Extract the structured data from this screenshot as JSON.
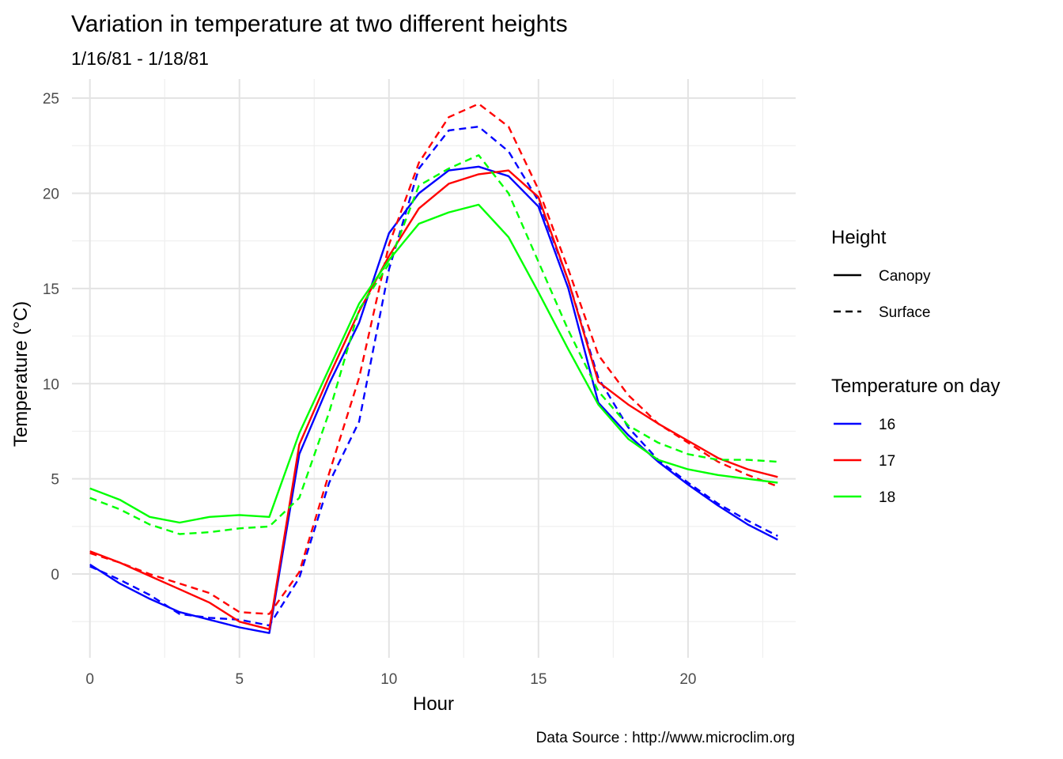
{
  "chart_data": {
    "type": "line",
    "title": "Variation in temperature at two different heights",
    "subtitle": "1/16/81 - 1/18/81",
    "xlabel": "Hour",
    "ylabel": "Temperature (°C)",
    "caption": "Data Source : http://www.microclim.org",
    "xlim": [
      -0.6,
      23.6
    ],
    "ylim": [
      -4.4,
      26.0
    ],
    "xticks": [
      0,
      5,
      10,
      15,
      20
    ],
    "yticks": [
      0,
      5,
      10,
      15,
      20,
      25
    ],
    "grid": true,
    "legend_position": "right",
    "legends": [
      {
        "title": "Height",
        "items": [
          {
            "label": "Canopy",
            "dash": "solid"
          },
          {
            "label": "Surface",
            "dash": "dashed"
          }
        ]
      },
      {
        "title": "Temperature on day",
        "items": [
          {
            "label": "16",
            "color": "#0000ff"
          },
          {
            "label": "17",
            "color": "#ff0000"
          },
          {
            "label": "18",
            "color": "#00ff00"
          }
        ]
      }
    ],
    "x": [
      0,
      1,
      2,
      3,
      4,
      5,
      6,
      7,
      8,
      9,
      10,
      11,
      12,
      13,
      14,
      15,
      16,
      17,
      18,
      19,
      20,
      21,
      22,
      23
    ],
    "series": [
      {
        "day": "16",
        "height": "Canopy",
        "color": "#0000ff",
        "dash": "solid",
        "values": [
          0.5,
          -0.5,
          -1.3,
          -2.0,
          -2.4,
          -2.8,
          -3.1,
          6.3,
          10.0,
          13.2,
          17.9,
          20.0,
          21.2,
          21.4,
          20.9,
          19.3,
          15.0,
          9.0,
          7.3,
          5.9,
          4.7,
          3.6,
          2.6,
          1.8
        ]
      },
      {
        "day": "16",
        "height": "Surface",
        "color": "#0000ff",
        "dash": "dashed",
        "values": [
          0.4,
          -0.3,
          -1.1,
          -2.1,
          -2.3,
          -2.4,
          -2.7,
          -0.2,
          4.8,
          8.0,
          16.0,
          21.3,
          23.3,
          23.5,
          22.2,
          19.6,
          15.4,
          10.3,
          7.7,
          6.0,
          4.8,
          3.7,
          2.8,
          2.0
        ]
      },
      {
        "day": "17",
        "height": "Canopy",
        "color": "#ff0000",
        "dash": "solid",
        "values": [
          1.2,
          0.6,
          -0.1,
          -0.8,
          -1.5,
          -2.5,
          -2.9,
          6.8,
          10.4,
          13.8,
          16.7,
          19.2,
          20.5,
          21.0,
          21.2,
          19.8,
          15.4,
          10.1,
          8.9,
          7.9,
          7.0,
          6.1,
          5.5,
          5.1
        ]
      },
      {
        "day": "17",
        "height": "Surface",
        "color": "#ff0000",
        "dash": "dashed",
        "values": [
          1.1,
          0.6,
          0.0,
          -0.5,
          -1.0,
          -2.0,
          -2.1,
          0.1,
          5.3,
          10.3,
          17.3,
          21.6,
          24.0,
          24.7,
          23.5,
          20.2,
          16.0,
          11.5,
          9.4,
          7.9,
          6.9,
          5.9,
          5.2,
          4.6
        ]
      },
      {
        "day": "18",
        "height": "Canopy",
        "color": "#00ff00",
        "dash": "solid",
        "values": [
          4.5,
          3.9,
          3.0,
          2.7,
          3.0,
          3.1,
          3.0,
          7.4,
          10.8,
          14.2,
          16.5,
          18.4,
          19.0,
          19.4,
          17.7,
          14.8,
          11.8,
          8.9,
          7.1,
          6.0,
          5.5,
          5.2,
          5.0,
          4.8
        ]
      },
      {
        "day": "18",
        "height": "Surface",
        "color": "#00ff00",
        "dash": "dashed",
        "values": [
          4.0,
          3.4,
          2.6,
          2.1,
          2.2,
          2.4,
          2.5,
          4.0,
          8.5,
          13.9,
          16.3,
          20.4,
          21.3,
          22.0,
          20.0,
          16.4,
          12.8,
          9.6,
          7.8,
          6.9,
          6.3,
          6.0,
          6.0,
          5.9
        ]
      }
    ]
  }
}
